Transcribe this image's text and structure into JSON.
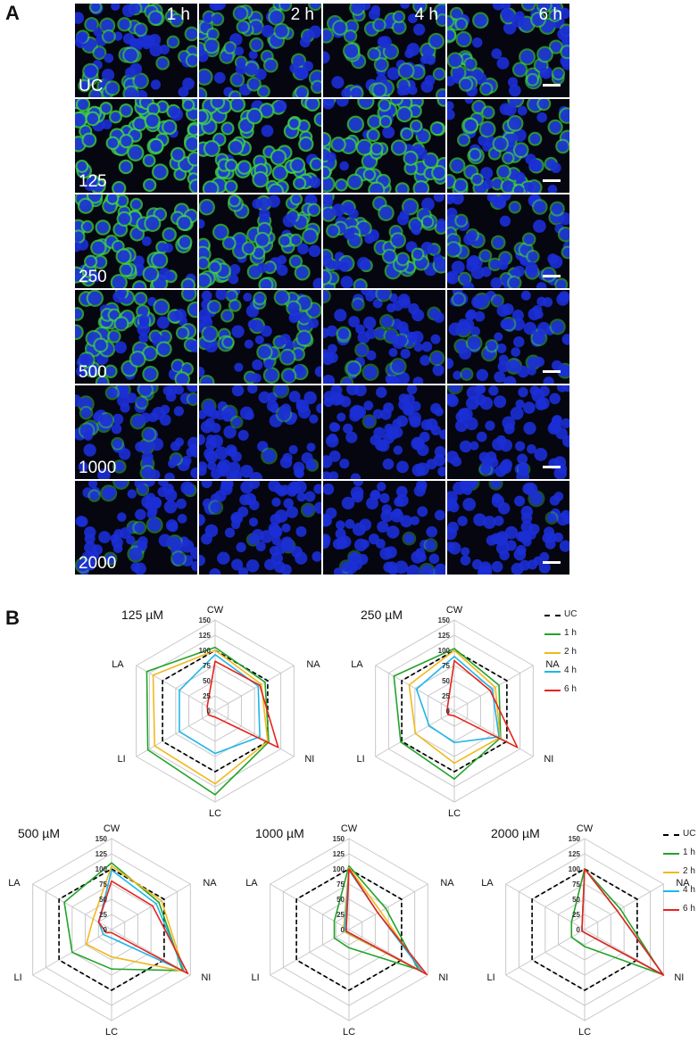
{
  "panel_a": {
    "label": "A",
    "time_labels": [
      "1 h",
      "2 h",
      "4 h",
      "6 h"
    ],
    "row_labels": [
      "UC",
      "125",
      "250",
      "500",
      "1000",
      "2000"
    ],
    "green_intensity": [
      [
        0.55,
        0.55,
        0.55,
        0.55
      ],
      [
        0.9,
        0.9,
        0.8,
        0.65
      ],
      [
        0.8,
        0.7,
        0.6,
        0.45
      ],
      [
        0.7,
        0.55,
        0.2,
        0.25
      ],
      [
        0.25,
        0.12,
        0.05,
        0.05
      ],
      [
        0.22,
        0.06,
        0.03,
        0.03
      ]
    ],
    "colors": {
      "nucleus": "#1c2fd6",
      "cytoplasm": "#3fd24a",
      "background": "#05060f"
    }
  },
  "panel_b": {
    "label": "B",
    "legend": [
      {
        "label": "UC",
        "color": "#000000",
        "dashed": true
      },
      {
        "label": "1 h",
        "color": "#22a32a",
        "dashed": false
      },
      {
        "label": "2 h",
        "color": "#f2b81c",
        "dashed": false
      },
      {
        "label": "4 h",
        "color": "#1fb6e8",
        "dashed": false
      },
      {
        "label": "6 h",
        "color": "#e8221c",
        "dashed": false
      }
    ]
  },
  "chart_data": [
    {
      "type": "radar",
      "title": "125 µM",
      "axes": [
        "CW",
        "NA",
        "NI",
        "LC",
        "LI",
        "LA"
      ],
      "rlim": [
        0,
        150
      ],
      "ticks": [
        "0",
        "25",
        "50",
        "75",
        "100",
        "125",
        "150"
      ],
      "grid": true,
      "series": [
        {
          "name": "UC",
          "values": [
            100,
            100,
            100,
            100,
            100,
            100
          ]
        },
        {
          "name": "1 h",
          "values": [
            105,
            95,
            102,
            138,
            128,
            130
          ]
        },
        {
          "name": "2 h",
          "values": [
            100,
            88,
            100,
            120,
            115,
            118
          ]
        },
        {
          "name": "4 h",
          "values": [
            93,
            82,
            85,
            70,
            68,
            68
          ]
        },
        {
          "name": "6 h",
          "values": [
            82,
            85,
            120,
            10,
            13,
            15
          ]
        }
      ]
    },
    {
      "type": "radar",
      "title": "250 µM",
      "axes": [
        "CW",
        "NA",
        "NI",
        "LC",
        "LI",
        "LA"
      ],
      "rlim": [
        0,
        150
      ],
      "ticks": [
        "0",
        "25",
        "50",
        "75",
        "100",
        "125",
        "150"
      ],
      "grid": true,
      "series": [
        {
          "name": "UC",
          "values": [
            100,
            100,
            100,
            100,
            100,
            100
          ]
        },
        {
          "name": "1 h",
          "values": [
            103,
            85,
            88,
            112,
            102,
            115
          ]
        },
        {
          "name": "2 h",
          "values": [
            100,
            78,
            87,
            86,
            74,
            86
          ]
        },
        {
          "name": "4 h",
          "values": [
            90,
            72,
            85,
            52,
            48,
            72
          ]
        },
        {
          "name": "6 h",
          "values": [
            83,
            68,
            120,
            8,
            12,
            13
          ]
        }
      ]
    },
    {
      "type": "radar",
      "title": "500 µM",
      "axes": [
        "CW",
        "NA",
        "NI",
        "LC",
        "LI",
        "LA"
      ],
      "rlim": [
        0,
        150
      ],
      "ticks": [
        "0",
        "25",
        "50",
        "75",
        "100",
        "125",
        "150"
      ],
      "grid": true,
      "series": [
        {
          "name": "UC",
          "values": [
            100,
            100,
            100,
            100,
            100,
            100
          ]
        },
        {
          "name": "1 h",
          "values": [
            110,
            90,
            135,
            65,
            75,
            90
          ]
        },
        {
          "name": "2 h",
          "values": [
            105,
            95,
            138,
            45,
            48,
            35
          ]
        },
        {
          "name": "4 h",
          "values": [
            98,
            85,
            138,
            14,
            16,
            24
          ]
        },
        {
          "name": "6 h",
          "values": [
            80,
            78,
            145,
            5,
            10,
            25
          ]
        }
      ]
    },
    {
      "type": "radar",
      "title": "1000 µM",
      "axes": [
        "CW",
        "NA",
        "NI",
        "LC",
        "LI",
        "LA"
      ],
      "rlim": [
        0,
        150
      ],
      "ticks": [
        "0",
        "25",
        "50",
        "75",
        "100",
        "125",
        "150"
      ],
      "grid": true,
      "series": [
        {
          "name": "UC",
          "values": [
            100,
            100,
            100,
            100,
            100,
            100
          ]
        },
        {
          "name": "1 h",
          "values": [
            105,
            70,
            132,
            30,
            28,
            28
          ]
        },
        {
          "name": "2 h",
          "values": [
            102,
            60,
            138,
            8,
            8,
            10
          ]
        },
        {
          "name": "4 h",
          "values": [
            98,
            55,
            140,
            6,
            6,
            8
          ]
        },
        {
          "name": "6 h",
          "values": [
            100,
            55,
            148,
            5,
            5,
            5
          ]
        }
      ]
    },
    {
      "type": "radar",
      "title": "2000 µM",
      "axes": [
        "CW",
        "NA",
        "NI",
        "LC",
        "LI",
        "LA"
      ],
      "rlim": [
        0,
        150
      ],
      "ticks": [
        "0",
        "25",
        "50",
        "75",
        "100",
        "125",
        "150"
      ],
      "grid": true,
      "series": [
        {
          "name": "UC",
          "values": [
            100,
            100,
            100,
            100,
            100,
            100
          ]
        },
        {
          "name": "1 h",
          "values": [
            100,
            68,
            148,
            28,
            25,
            25
          ]
        },
        {
          "name": "2 h",
          "values": [
            100,
            62,
            150,
            5,
            5,
            5
          ]
        },
        {
          "name": "4 h",
          "values": [
            100,
            62,
            150,
            5,
            5,
            5
          ]
        },
        {
          "name": "6 h",
          "values": [
            100,
            62,
            150,
            5,
            5,
            5
          ]
        }
      ]
    }
  ]
}
